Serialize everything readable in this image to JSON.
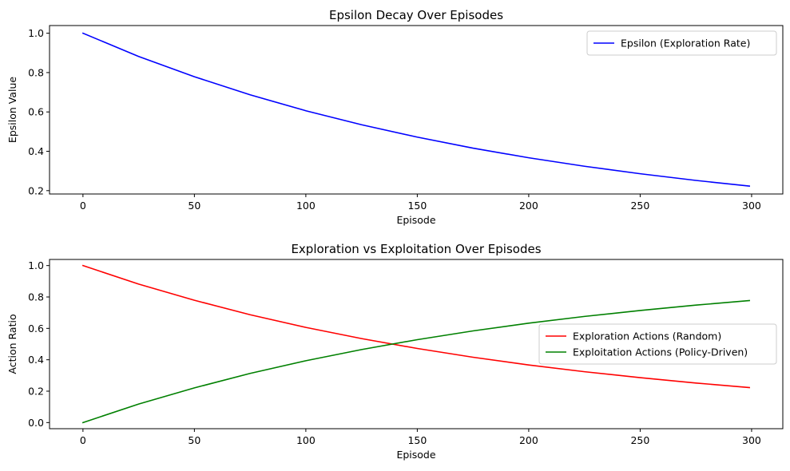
{
  "chart_data": [
    {
      "type": "line",
      "title": "Epsilon Decay Over Episodes",
      "xlabel": "Episode",
      "ylabel": "Epsilon Value",
      "xlim": [
        -15,
        314
      ],
      "ylim": [
        0.183,
        1.039
      ],
      "xticks": [
        0,
        50,
        100,
        150,
        200,
        250,
        300
      ],
      "yticks": [
        0.2,
        0.4,
        0.6,
        0.8,
        1.0
      ],
      "ytick_labels": [
        "0.2",
        "0.4",
        "0.6",
        "0.8",
        "1.0"
      ],
      "grid": false,
      "legend_position": "top-right",
      "series": [
        {
          "name": "Epsilon (Exploration Rate)",
          "color": "#0000ff",
          "x": [
            0,
            25,
            50,
            75,
            100,
            125,
            150,
            175,
            200,
            225,
            250,
            275,
            299
          ],
          "values": [
            1.0,
            0.882,
            0.779,
            0.687,
            0.606,
            0.535,
            0.472,
            0.416,
            0.367,
            0.324,
            0.286,
            0.252,
            0.223
          ]
        }
      ]
    },
    {
      "type": "line",
      "title": "Exploration vs Exploitation Over Episodes",
      "xlabel": "Episode",
      "ylabel": "Action Ratio",
      "xlim": [
        -15,
        314
      ],
      "ylim": [
        -0.039,
        1.039
      ],
      "xticks": [
        0,
        50,
        100,
        150,
        200,
        250,
        300
      ],
      "yticks": [
        0.0,
        0.2,
        0.4,
        0.6,
        0.8,
        1.0
      ],
      "ytick_labels": [
        "0.0",
        "0.2",
        "0.4",
        "0.6",
        "0.8",
        "1.0"
      ],
      "grid": false,
      "legend_position": "center-right",
      "series": [
        {
          "name": "Exploration Actions (Random)",
          "color": "#ff0000",
          "x": [
            0,
            25,
            50,
            75,
            100,
            125,
            150,
            175,
            200,
            225,
            250,
            275,
            299
          ],
          "values": [
            1.0,
            0.882,
            0.779,
            0.687,
            0.606,
            0.535,
            0.472,
            0.416,
            0.367,
            0.324,
            0.286,
            0.252,
            0.223
          ]
        },
        {
          "name": "Exploitation Actions (Policy-Driven)",
          "color": "#008000",
          "x": [
            0,
            25,
            50,
            75,
            100,
            125,
            150,
            175,
            200,
            225,
            250,
            275,
            299
          ],
          "values": [
            0.0,
            0.118,
            0.221,
            0.313,
            0.394,
            0.465,
            0.528,
            0.584,
            0.633,
            0.676,
            0.714,
            0.748,
            0.777
          ]
        }
      ]
    }
  ]
}
